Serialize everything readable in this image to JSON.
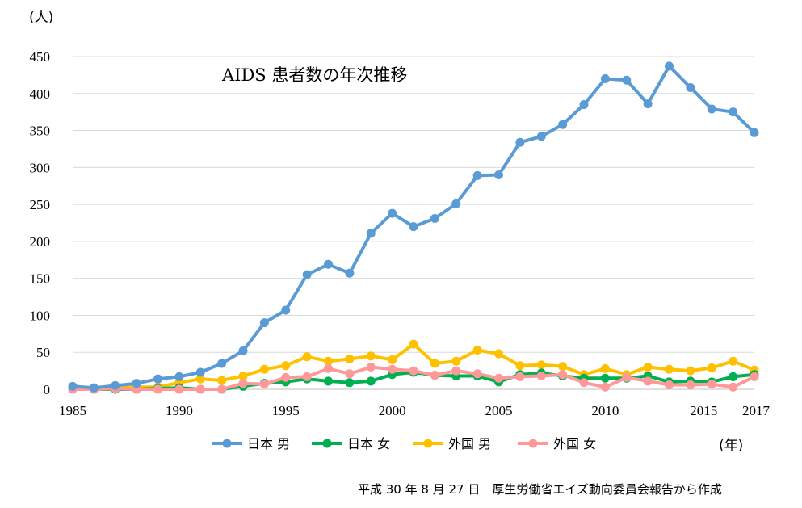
{
  "chart_data": {
    "type": "line",
    "title": "AIDS 患者数の年次推移",
    "ylabel": "(人)",
    "xlabel": "(年)",
    "source_note": "平成 30 年 8 月 27 日　厚生労働省エイズ動向委員会報告から作成",
    "ylim": [
      0,
      450
    ],
    "y_ticks": [
      0,
      50,
      100,
      150,
      200,
      250,
      300,
      350,
      400,
      450
    ],
    "x_ticks": [
      1985,
      1990,
      1995,
      2000,
      2005,
      2010,
      2015,
      2017
    ],
    "xlim": [
      1985,
      2017
    ],
    "grid": true,
    "legend_position": "bottom",
    "x": [
      1985,
      1986,
      1987,
      1988,
      1989,
      1990,
      1991,
      1992,
      1993,
      1994,
      1995,
      1996,
      1997,
      1998,
      1999,
      2000,
      2001,
      2002,
      2003,
      2004,
      2005,
      2006,
      2007,
      2008,
      2009,
      2010,
      2011,
      2012,
      2013,
      2014,
      2015,
      2016,
      2017
    ],
    "series": [
      {
        "name": "日本 男",
        "color": "#5b9bd5",
        "values": [
          4,
          2,
          5,
          8,
          14,
          17,
          23,
          35,
          52,
          90,
          107,
          155,
          169,
          157,
          211,
          238,
          220,
          231,
          251,
          289,
          290,
          334,
          342,
          358,
          385,
          420,
          418,
          386,
          437,
          408,
          379,
          375,
          347
        ]
      },
      {
        "name": "日本 女",
        "color": "#00b050",
        "values": [
          0,
          0,
          0,
          0,
          1,
          2,
          0,
          0,
          4,
          8,
          10,
          14,
          11,
          9,
          11,
          20,
          23,
          19,
          18,
          18,
          10,
          20,
          22,
          18,
          15,
          15,
          15,
          18,
          10,
          11,
          10,
          17,
          20
        ]
      },
      {
        "name": "外国 男",
        "color": "#ffc000",
        "values": [
          2,
          2,
          2,
          3,
          3,
          9,
          14,
          12,
          18,
          27,
          32,
          44,
          38,
          41,
          45,
          40,
          61,
          35,
          38,
          53,
          48,
          32,
          33,
          31,
          20,
          28,
          20,
          30,
          27,
          25,
          29,
          38,
          26
        ]
      },
      {
        "name": "外国 女",
        "color": "#ff9999",
        "values": [
          0,
          0,
          1,
          0,
          0,
          0,
          0,
          0,
          8,
          7,
          16,
          17,
          28,
          21,
          30,
          27,
          25,
          19,
          25,
          21,
          15,
          17,
          18,
          20,
          9,
          3,
          16,
          11,
          6,
          6,
          7,
          3,
          17
        ]
      }
    ]
  }
}
